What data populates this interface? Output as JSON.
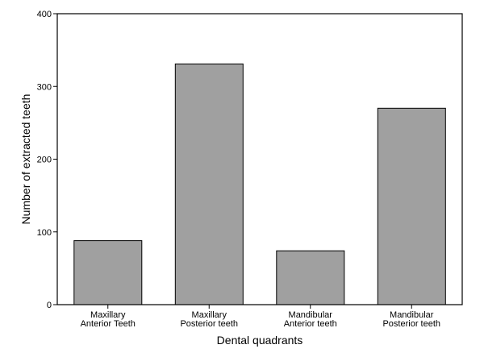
{
  "chart_data": {
    "type": "bar",
    "categories": [
      [
        "Maxillary",
        "Anterior Teeth"
      ],
      [
        "Maxillary",
        "Posterior teeth"
      ],
      [
        "Mandibular",
        "Anterior teeth"
      ],
      [
        "Mandibular",
        "Posterior teeth"
      ]
    ],
    "values": [
      88,
      331,
      74,
      270
    ],
    "xlabel": "Dental quadrants",
    "ylabel": "Number of extracted teeth",
    "ylim": [
      0,
      400
    ],
    "yticks": [
      0,
      100,
      200,
      300,
      400
    ],
    "grid": false,
    "bar_color": "#a0a0a0",
    "bar_edge_color": "#000000"
  }
}
